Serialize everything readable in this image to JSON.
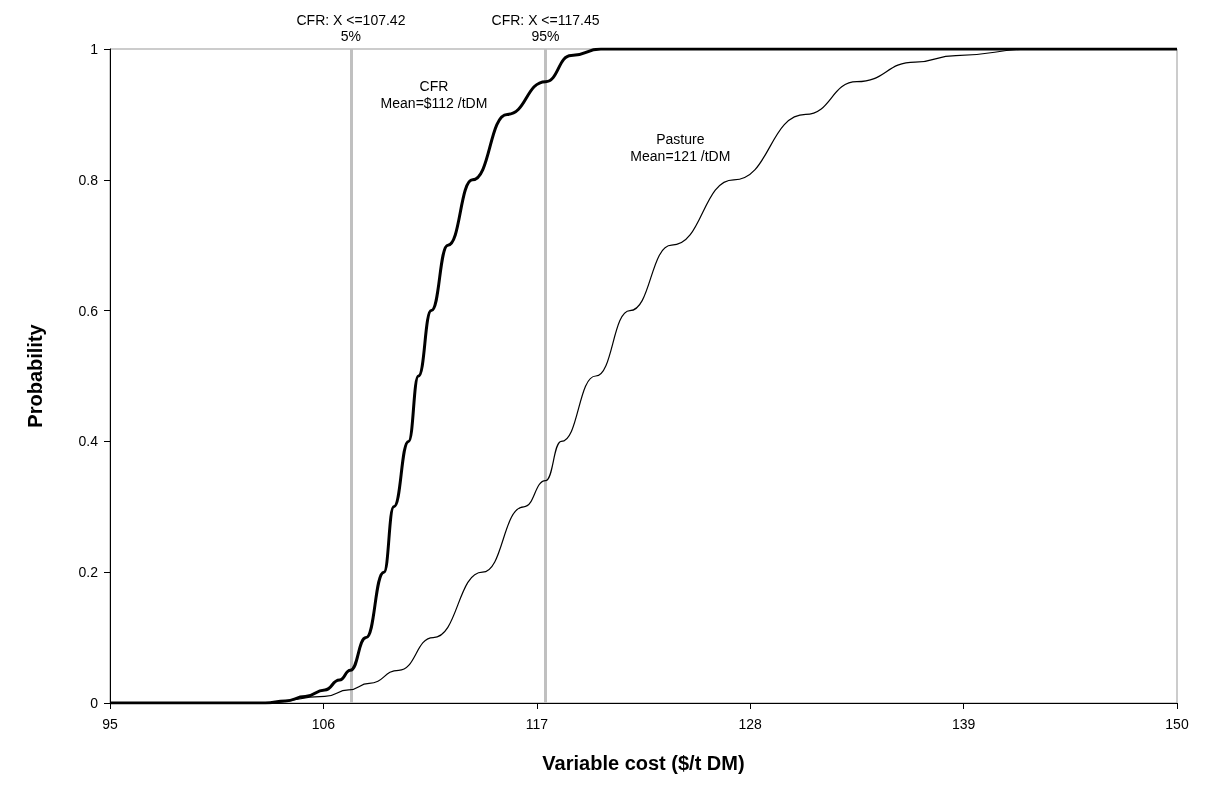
{
  "chart_data": {
    "type": "line",
    "xlabel": "Variable cost ($/t DM)",
    "ylabel": "Probability",
    "xlim": [
      95,
      150
    ],
    "xticks": [
      95,
      106,
      117,
      128,
      139,
      150
    ],
    "ylim": [
      0,
      1
    ],
    "yticks": [
      0,
      0.2,
      0.4,
      0.6,
      0.8,
      1
    ],
    "grid": false,
    "marker": "none",
    "line_style": "solid",
    "series": [
      {
        "color": "#000000",
        "x": [
          95,
          103,
          104.04,
          105.06,
          106.07,
          106.83,
          107.39,
          108.2,
          109.12,
          109.63,
          110.39,
          110.9,
          111.56,
          112.42,
          113.69,
          115.47,
          117.45,
          118.77,
          120.3,
          150
        ],
        "values": [
          0,
          0,
          0.003,
          0.01,
          0.02,
          0.035,
          0.05,
          0.1,
          0.2,
          0.3,
          0.4,
          0.5,
          0.6,
          0.7,
          0.8,
          0.9,
          0.95,
          0.99,
          1,
          1
        ]
      },
      {
        "color": "#000000",
        "x": [
          95,
          103,
          106.07,
          107.3,
          108.36,
          109.88,
          111.66,
          114.2,
          116.33,
          117.45,
          118.26,
          120.04,
          121.8,
          123.95,
          127.15,
          130.86,
          133.5,
          136.5,
          138.6,
          142.6,
          150
        ],
        "values": [
          0,
          0,
          0.01,
          0.02,
          0.03,
          0.05,
          0.1,
          0.2,
          0.3,
          0.34,
          0.4,
          0.5,
          0.6,
          0.7,
          0.8,
          0.9,
          0.95,
          0.98,
          0.99,
          1,
          1
        ]
      }
    ],
    "ref_lines": [
      {
        "axis": "x",
        "value": 107.42,
        "label": "CFR: X <=107.42\n5%",
        "color": "#c0c0c0"
      },
      {
        "axis": "x",
        "value": 117.45,
        "label": "CFR: X <=117.45\n95%",
        "color": "#c0c0c0"
      }
    ],
    "annotations": [
      "CFR\nMean=$112 /tDM",
      "Pasture\nMean=121 /tDM"
    ]
  }
}
